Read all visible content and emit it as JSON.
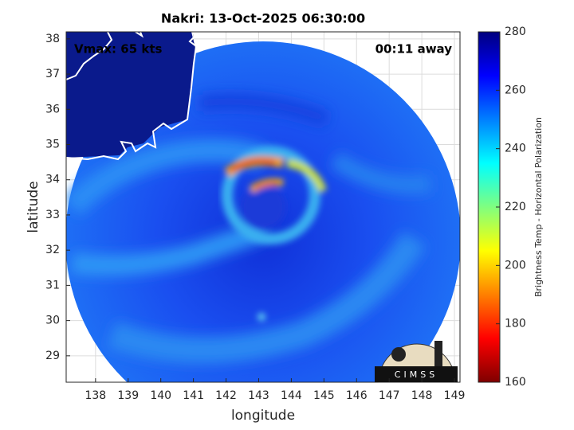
{
  "chart_data": {
    "type": "swath",
    "title": "Nakri: 13-Oct-2025 06:30:00",
    "x_label": "longitude",
    "y_label": "latitude",
    "xlim": [
      137.1,
      149.17
    ],
    "ylim": [
      28.25,
      38.2
    ],
    "xticks": [
      138,
      139,
      140,
      141,
      142,
      143,
      144,
      145,
      146,
      147,
      148,
      149
    ],
    "yticks": [
      29,
      30,
      31,
      32,
      33,
      34,
      35,
      36,
      37,
      38
    ],
    "grid": true,
    "annotations": [
      "Vmax: 65 kts",
      "00:11 away"
    ],
    "colorbar": {
      "label": "Brightness Temp - Horizontal Polarization",
      "lim": [
        160,
        280
      ],
      "ticks": [
        160,
        180,
        200,
        220,
        240,
        260,
        280
      ]
    },
    "logo": "CIMSS"
  }
}
